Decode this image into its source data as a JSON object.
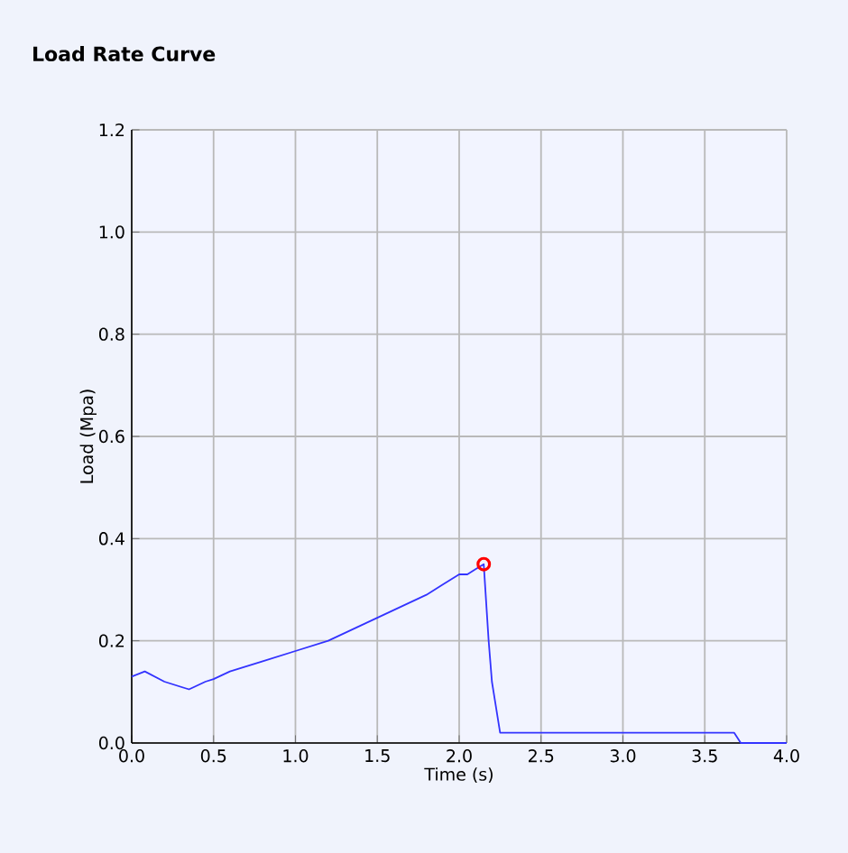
{
  "chart_data": {
    "type": "line",
    "title": "**Load Rate Curve**",
    "xlabel": "Time (s)",
    "ylabel": "Load (Mpa)",
    "xlim": [
      0,
      4
    ],
    "ylim": [
      0,
      1.2
    ],
    "xticks": [
      {
        "value": 0,
        "label": "0.0"
      },
      0.5,
      {
        "value": 1,
        "label": "1.0"
      },
      1.5,
      {
        "value": 2,
        "label": "2.0"
      },
      2.5,
      {
        "value": 3,
        "label": "3.0"
      },
      3.5,
      {
        "value": 4,
        "label": "4.0"
      }
    ],
    "yticks": [
      {
        "value": 0,
        "label": "0.0"
      },
      0.2,
      0.4,
      0.6,
      0.8,
      {
        "value": 1,
        "label": "1.0"
      },
      1.2
    ],
    "grid": true,
    "series": [
      {
        "color": "#3333ff",
        "x": [
          0,
          0.08,
          0.2,
          0.35,
          0.45,
          0.5,
          0.6,
          0.8,
          1.0,
          1.2,
          1.4,
          1.6,
          1.8,
          1.9,
          2.0,
          2.05,
          2.1,
          2.15,
          2.18,
          2.2,
          2.25,
          2.5,
          3.0,
          3.5,
          3.68,
          3.72,
          4.0
        ],
        "values": [
          0.13,
          0.14,
          0.12,
          0.105,
          0.12,
          0.125,
          0.14,
          0.16,
          0.18,
          0.2,
          0.23,
          0.26,
          0.29,
          0.31,
          0.33,
          0.33,
          0.34,
          0.35,
          0.2,
          0.12,
          0.02,
          0.02,
          0.02,
          0.02,
          0.02,
          0,
          0
        ]
      },
      {
        "type": "scatter",
        "color": "#ff0000",
        "marker": "circle",
        "x": [
          2.15
        ],
        "values": [
          0.35
        ]
      }
    ]
  }
}
